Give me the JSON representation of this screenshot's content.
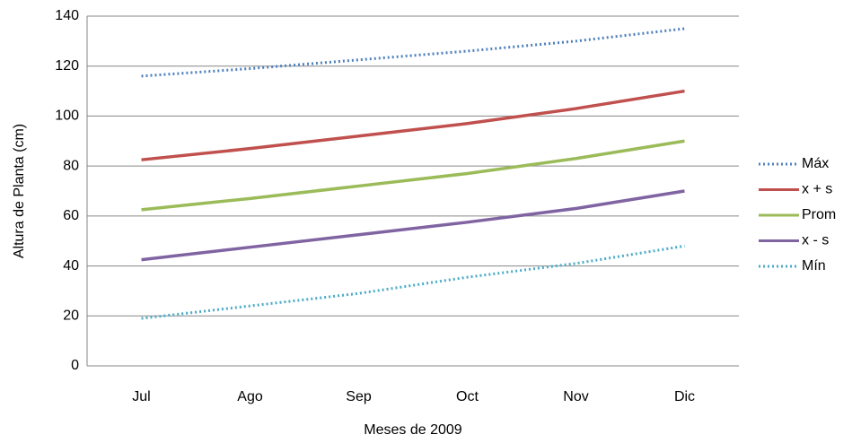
{
  "chart_data": {
    "type": "line",
    "x_label": "Meses de 2009",
    "y_label": "Altura de Planta (cm)",
    "categories": [
      "Jul",
      "Ago",
      "Sep",
      "Oct",
      "Nov",
      "Dic"
    ],
    "series": [
      {
        "name": "Máx",
        "color": "#4f81bd",
        "style": "dotted",
        "values": [
          116,
          119,
          122.5,
          126,
          130,
          135
        ]
      },
      {
        "name": "x + s",
        "color": "#c0504d",
        "style": "solid",
        "values": [
          82.5,
          87,
          92,
          97,
          103,
          110
        ]
      },
      {
        "name": "Prom",
        "color": "#9bbb59",
        "style": "solid",
        "values": [
          62.5,
          67,
          72,
          77,
          83,
          90
        ]
      },
      {
        "name": "x - s",
        "color": "#8064a2",
        "style": "solid",
        "values": [
          42.5,
          47.5,
          52.5,
          57.5,
          63,
          70
        ]
      },
      {
        "name": "Mín",
        "color": "#4bacc6",
        "style": "dotted",
        "values": [
          19,
          24,
          29,
          35.5,
          41,
          48
        ]
      }
    ],
    "ylim": [
      0,
      140
    ],
    "yticks": [
      0,
      20,
      40,
      60,
      80,
      100,
      120,
      140
    ],
    "grid": true
  }
}
